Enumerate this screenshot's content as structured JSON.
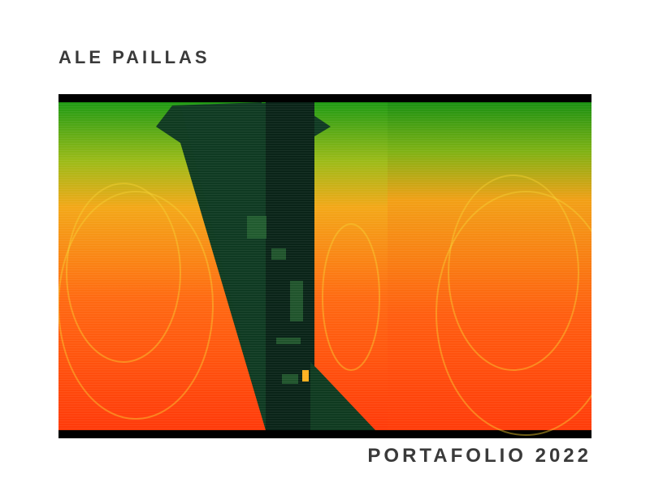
{
  "author": {
    "name": "ALE PAILLAS"
  },
  "cover": {
    "title": "PORTAFOLIO 2022"
  },
  "artwork": {
    "description_icon": "abstract-thermal-image",
    "colors": {
      "frame": "#000000",
      "hot": "#ff3a0a",
      "warm": "#ff8a10",
      "mid": "#f5b818",
      "cool": "#22a010",
      "dark": "#0f3a20",
      "deep": "#0a2418"
    }
  }
}
